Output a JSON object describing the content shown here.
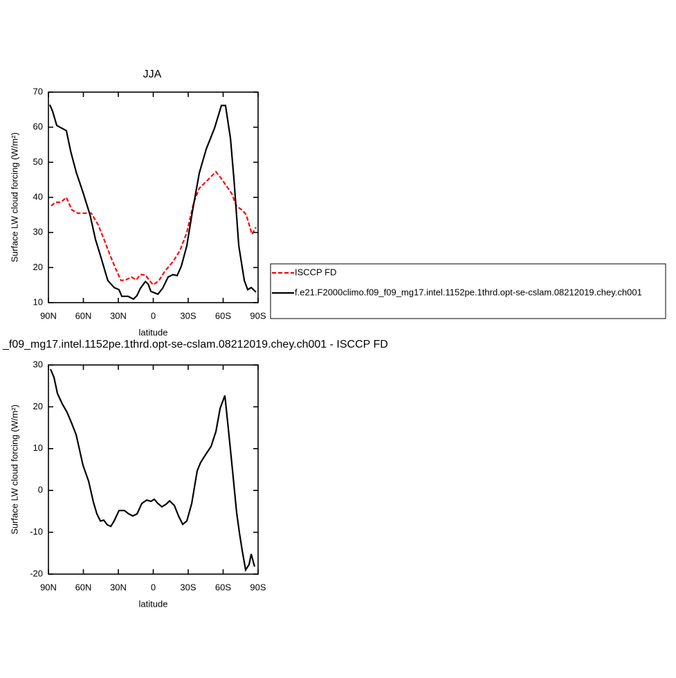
{
  "chart_data": [
    {
      "type": "line",
      "title": "JJA",
      "xlabel": "latitude",
      "ylabel": "Surface LW cloud forcing (W/m²)",
      "xlim": [
        90,
        -90
      ],
      "ylim": [
        10,
        70
      ],
      "xticks": [
        {
          "value": 90,
          "label": "90N"
        },
        {
          "value": 60,
          "label": "60N"
        },
        {
          "value": 30,
          "label": "30N"
        },
        0,
        {
          "value": -30,
          "label": "30S"
        },
        {
          "value": -60,
          "label": "60S"
        },
        {
          "value": -90,
          "label": "90S"
        }
      ],
      "yticks": [
        10,
        20,
        30,
        40,
        50,
        60,
        70
      ],
      "legend": "right",
      "series": [
        {
          "name": "ISCCP FD",
          "color": "#ff0000",
          "line_style": "dashed",
          "x": [
            87.6,
            84.1,
            79.3,
            74.6,
            69.8,
            65,
            59.1,
            53.2,
            47.2,
            42.5,
            36.5,
            31.8,
            27.6,
            23.5,
            18.7,
            14.6,
            11,
            6.8,
            3.3,
            0,
            -4.9,
            -9.8,
            -17,
            -22.9,
            -28.8,
            -34.8,
            -39.5,
            -45.5,
            -49.6,
            -53.8,
            -58.5,
            -63.3,
            -67.5,
            -71.6,
            -76.4,
            -79.9,
            -84.7,
            -88.2
          ],
          "values": [
            37.6,
            38.6,
            38.6,
            40,
            36.4,
            35.5,
            35.5,
            35.5,
            32.1,
            28.2,
            23,
            19.3,
            16.3,
            16.5,
            17.3,
            16.5,
            18,
            17.9,
            16.3,
            15.1,
            16.3,
            18.9,
            21.7,
            24.8,
            30,
            38.6,
            42.6,
            44.5,
            45.9,
            47.3,
            45.3,
            43,
            41,
            37.4,
            36.4,
            35,
            29.5,
            31.5
          ]
        },
        {
          "name": "f.e21.F2000climo.f09_f09_mg17.intel.1152pe.1thrd.opt-se-cslam.08212019.chey.ch001",
          "color": "#000000",
          "line_style": "solid",
          "x": [
            88.8,
            86.4,
            82.9,
            74.6,
            70.8,
            66,
            60.3,
            54.3,
            49.6,
            45.5,
            39,
            33.5,
            29.4,
            27,
            21.7,
            17,
            14,
            11,
            6.8,
            4.4,
            2,
            -4,
            -8.1,
            -12.8,
            -17,
            -20.5,
            -24,
            -28.8,
            -33.6,
            -39.5,
            -45.5,
            -52.6,
            -58.5,
            -62,
            -66.3,
            -69.3,
            -73.4,
            -78.2,
            -81.1,
            -84.1,
            -88.2
          ],
          "values": [
            66.4,
            64.5,
            60.5,
            59,
            53,
            47,
            41.4,
            35,
            28,
            23.6,
            16.3,
            14.3,
            13.7,
            11.8,
            11.8,
            11,
            12,
            14.1,
            16,
            15.3,
            13.2,
            12.4,
            14.1,
            17.3,
            18,
            17.7,
            20.3,
            26.2,
            36,
            46.9,
            53.8,
            59.7,
            66.2,
            66.2,
            56.8,
            45,
            26.2,
            16.3,
            13.7,
            14.3,
            13
          ]
        }
      ]
    },
    {
      "type": "line",
      "title": "_f09_mg17.intel.1152pe.1thrd.opt-se-cslam.08212019.chey.ch001 - ISCCP FD",
      "xlabel": "latitude",
      "ylabel": "Surface LW cloud forcing (W/m²)",
      "xlim": [
        90,
        -90
      ],
      "ylim": [
        -20,
        30
      ],
      "xticks": [
        {
          "value": 90,
          "label": "90N"
        },
        {
          "value": 60,
          "label": "60N"
        },
        {
          "value": 30,
          "label": "30N"
        },
        0,
        {
          "value": -30,
          "label": "30S"
        },
        {
          "value": -60,
          "label": "60S"
        },
        {
          "value": -90,
          "label": "90S"
        }
      ],
      "yticks": [
        -20,
        -10,
        0,
        10,
        20,
        30
      ],
      "series": [
        {
          "color": "#000000",
          "line_style": "solid",
          "x": [
            88.2,
            85.2,
            82.3,
            78.1,
            74,
            70.4,
            66.2,
            60.3,
            55.5,
            51.4,
            48.4,
            45.4,
            42.5,
            39.5,
            36.5,
            33.6,
            29.4,
            24.7,
            21.1,
            17.5,
            13.9,
            9.8,
            5.6,
            2,
            -0.9,
            -3.9,
            -7.4,
            -11,
            -14,
            -18.1,
            -21.7,
            -25.3,
            -28.8,
            -33,
            -37.7,
            -40.7,
            -45.5,
            -49.6,
            -53.8,
            -57.4,
            -61.5,
            -64.5,
            -68.1,
            -71.6,
            -74,
            -76.4,
            -79.3,
            -82.3,
            -84.1,
            -87
          ],
          "values": [
            29,
            27,
            23.2,
            20.7,
            18.7,
            16.3,
            13.3,
            6,
            2.2,
            -2.8,
            -5.6,
            -7.3,
            -7.1,
            -8.2,
            -8.6,
            -7.3,
            -4.8,
            -4.8,
            -5.6,
            -6.1,
            -5.6,
            -3.1,
            -2.3,
            -2.6,
            -2.1,
            -3.1,
            -3.9,
            -3.3,
            -2.5,
            -3.6,
            -6.1,
            -8.1,
            -7.3,
            -3.1,
            4.7,
            6.7,
            8.8,
            10.5,
            14.1,
            19.6,
            22.7,
            14.6,
            4.7,
            -5.3,
            -10.2,
            -14.4,
            -19,
            -17.7,
            -15.2,
            -18.2
          ]
        }
      ]
    }
  ]
}
